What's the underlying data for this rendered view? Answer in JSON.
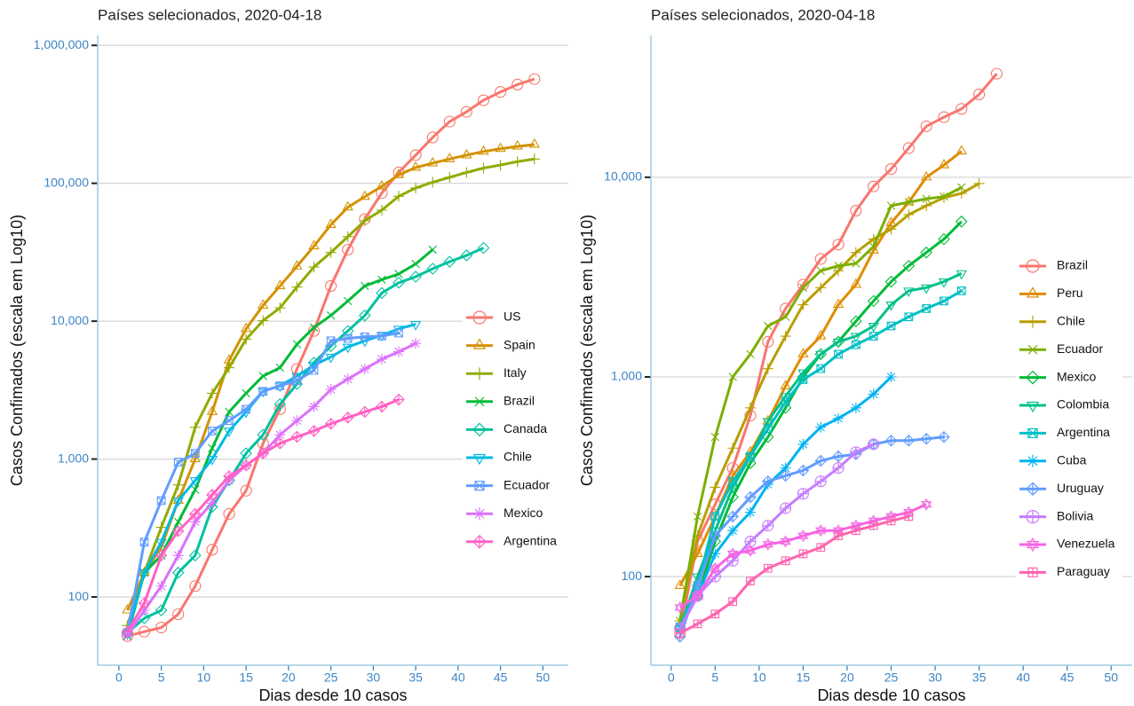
{
  "chart_data": [
    {
      "type": "line",
      "title": "Países selecionados, 2020-04-18",
      "x_label": "Dias desde 10 casos",
      "y_label": "Casos Confimados (escala em Log10)",
      "log_y": true,
      "grid": true,
      "legend": "right",
      "xlim": [
        -2.5,
        53
      ],
      "ylim": [
        32,
        1180000
      ],
      "xticks": [
        0,
        5,
        10,
        15,
        20,
        25,
        30,
        35,
        40,
        45,
        50
      ],
      "yticks": [
        100,
        {
          "value": 1000,
          "label": "1,000"
        },
        {
          "value": 10000,
          "label": "10,000"
        },
        {
          "value": 100000,
          "label": "100,000"
        },
        {
          "value": 1000000,
          "label": "1,000,000"
        }
      ],
      "x": [
        1,
        3,
        5,
        7,
        9,
        11,
        13,
        15,
        17,
        19,
        21,
        23,
        25,
        27,
        29,
        31,
        33,
        35,
        37,
        39,
        41,
        43,
        45,
        47,
        49
      ],
      "series": [
        {
          "name": "US",
          "color": "#F8766D",
          "marker": "circle",
          "values": [
            52,
            56,
            60,
            75,
            120,
            220,
            400,
            590,
            1300,
            2300,
            4500,
            8500,
            18000,
            33000,
            55000,
            85000,
            120000,
            160000,
            215000,
            280000,
            330000,
            400000,
            460000,
            520000,
            570000
          ]
        },
        {
          "name": "Spain",
          "color": "#D39200",
          "marker": "triangle",
          "values": [
            80,
            150,
            230,
            500,
            1000,
            2200,
            5200,
            8800,
            13000,
            18000,
            25000,
            35000,
            50000,
            67000,
            80000,
            95000,
            115000,
            130000,
            140000,
            150000,
            160000,
            170000,
            178000,
            185000,
            191000
          ]
        },
        {
          "name": "Italy",
          "color": "#93AA00",
          "marker": "plus",
          "values": [
            62,
            150,
            320,
            650,
            1700,
            3000,
            4600,
            7400,
            10100,
            12500,
            17700,
            24700,
            31500,
            41000,
            53500,
            63900,
            80500,
            92500,
            101700,
            110500,
            119800,
            128900,
            135600,
            143600,
            150000
          ]
        },
        {
          "name": "Brazil",
          "color": "#00BA38",
          "marker": "cross",
          "values": [
            52,
            150,
            200,
            350,
            600,
            1200,
            2200,
            3000,
            4000,
            4600,
            6800,
            9000,
            11000,
            14000,
            18000,
            20000,
            22000,
            26000,
            33000,
            null,
            null,
            null,
            null,
            null,
            null
          ]
        },
        {
          "name": "Canada",
          "color": "#00C19F",
          "marker": "diamond",
          "values": [
            55,
            70,
            80,
            150,
            200,
            450,
            700,
            1100,
            1500,
            2500,
            3500,
            5000,
            6600,
            8500,
            11000,
            16000,
            19000,
            21000,
            24000,
            27000,
            30000,
            34000,
            null,
            null,
            null
          ]
        },
        {
          "name": "Chile",
          "color": "#00B9E3",
          "marker": "triangle-down",
          "values": [
            55,
            150,
            250,
            500,
            700,
            1000,
            1600,
            2200,
            3100,
            3400,
            4000,
            4800,
            5500,
            6500,
            7200,
            7900,
            8800,
            9500,
            null,
            null,
            null,
            null,
            null,
            null,
            null
          ]
        },
        {
          "name": "Ecuador",
          "color": "#619CFF",
          "marker": "square-cross",
          "values": [
            55,
            250,
            500,
            950,
            1100,
            1600,
            1900,
            2300,
            3100,
            3400,
            3700,
            4400,
            7200,
            7500,
            7700,
            7800,
            8200,
            null,
            null,
            null,
            null,
            null,
            null,
            null,
            null
          ]
        },
        {
          "name": "Mexico",
          "color": "#DB72FB",
          "marker": "asterisk",
          "values": [
            53,
            80,
            120,
            200,
            350,
            480,
            700,
            900,
            1100,
            1500,
            1900,
            2400,
            3200,
            3800,
            4500,
            5300,
            6000,
            6900,
            null,
            null,
            null,
            null,
            null,
            null,
            null
          ]
        },
        {
          "name": "Argentina",
          "color": "#FF61C3",
          "marker": "diamond-plus",
          "values": [
            56,
            90,
            200,
            300,
            400,
            550,
            750,
            900,
            1100,
            1300,
            1450,
            1600,
            1800,
            2000,
            2200,
            2400,
            2700,
            null,
            null,
            null,
            null,
            null,
            null,
            null,
            null
          ]
        }
      ]
    },
    {
      "type": "line",
      "title": "Países selecionados, 2020-04-18",
      "x_label": "Dias desde 10 casos",
      "y_label": "Casos Confimados (escala em Log10)",
      "log_y": true,
      "grid": true,
      "legend": "right",
      "xlim": [
        -2.3,
        52.4
      ],
      "ylim": [
        36,
        51300
      ],
      "xticks": [
        0,
        5,
        10,
        15,
        20,
        25,
        30,
        35,
        40,
        45,
        50
      ],
      "yticks": [
        100,
        {
          "value": 1000,
          "label": "1,000"
        },
        {
          "value": 10000,
          "label": "10,000"
        }
      ],
      "x": [
        1,
        3,
        5,
        7,
        9,
        11,
        13,
        15,
        17,
        19,
        21,
        23,
        25,
        27,
        29,
        31,
        33,
        35,
        37
      ],
      "series": [
        {
          "name": "Brazil",
          "color": "#F8766D",
          "marker": "circle",
          "values": [
            52,
            150,
            230,
            350,
            640,
            1500,
            2200,
            2900,
            3900,
            4600,
            6800,
            9000,
            11000,
            14000,
            18000,
            20000,
            22000,
            26000,
            33000
          ]
        },
        {
          "name": "Peru",
          "color": "#DE8C00",
          "marker": "triangle",
          "values": [
            90,
            130,
            200,
            320,
            420,
            600,
            900,
            1300,
            1600,
            2300,
            2900,
            4300,
            5900,
            7500,
            10000,
            11500,
            13500,
            null,
            null
          ]
        },
        {
          "name": "Chile",
          "color": "#B79F00",
          "marker": "plus",
          "values": [
            60,
            160,
            280,
            440,
            700,
            1100,
            1600,
            2300,
            2800,
            3400,
            4200,
            4900,
            5500,
            6500,
            7200,
            7900,
            8300,
            9300,
            null
          ]
        },
        {
          "name": "Ecuador",
          "color": "#7CAE00",
          "marker": "cross",
          "values": [
            60,
            200,
            500,
            1000,
            1300,
            1800,
            2000,
            2800,
            3400,
            3600,
            3700,
            4500,
            7200,
            7500,
            7800,
            8000,
            8900,
            null,
            null
          ]
        },
        {
          "name": "Mexico",
          "color": "#00BA38",
          "marker": "diamond",
          "values": [
            55,
            80,
            150,
            250,
            370,
            500,
            700,
            1000,
            1300,
            1500,
            1900,
            2400,
            3000,
            3600,
            4200,
            4900,
            6000,
            null,
            null
          ]
        },
        {
          "name": "Colombia",
          "color": "#00C08B",
          "marker": "triangle-down",
          "values": [
            55,
            100,
            170,
            280,
            400,
            600,
            800,
            1050,
            1300,
            1500,
            1600,
            1800,
            2300,
            2700,
            2800,
            3000,
            3300,
            null,
            null
          ]
        },
        {
          "name": "Argentina",
          "color": "#00BFC4",
          "marker": "square-cross",
          "values": [
            56,
            90,
            200,
            300,
            400,
            550,
            750,
            970,
            1100,
            1300,
            1450,
            1600,
            1800,
            2000,
            2200,
            2400,
            2700,
            null,
            null
          ]
        },
        {
          "name": "Cuba",
          "color": "#00B4F0",
          "marker": "asterisk",
          "values": [
            55,
            80,
            130,
            170,
            210,
            290,
            350,
            460,
            560,
            620,
            700,
            820,
            1000,
            null,
            null,
            null,
            null,
            null,
            null
          ]
        },
        {
          "name": "Uruguay",
          "color": "#619CFF",
          "marker": "diamond-plus",
          "values": [
            50,
            90,
            160,
            200,
            250,
            300,
            320,
            340,
            380,
            400,
            410,
            460,
            480,
            480,
            490,
            500,
            null,
            null,
            null
          ]
        },
        {
          "name": "Bolivia",
          "color": "#C77CFF",
          "marker": "circle-plus",
          "values": [
            55,
            80,
            100,
            120,
            150,
            180,
            220,
            260,
            300,
            350,
            420,
            460,
            null,
            null,
            null,
            null,
            null,
            null,
            null
          ]
        },
        {
          "name": "Venezuela",
          "color": "#F564E3",
          "marker": "hexagram",
          "values": [
            70,
            80,
            110,
            130,
            135,
            145,
            150,
            160,
            170,
            170,
            180,
            190,
            200,
            210,
            230,
            null,
            null,
            null,
            null
          ]
        },
        {
          "name": "Paraguay",
          "color": "#FF64B0",
          "marker": "square-plus",
          "values": [
            52,
            58,
            65,
            75,
            95,
            110,
            120,
            130,
            140,
            160,
            170,
            180,
            190,
            200,
            null,
            null,
            null,
            null,
            null
          ]
        }
      ]
    }
  ]
}
